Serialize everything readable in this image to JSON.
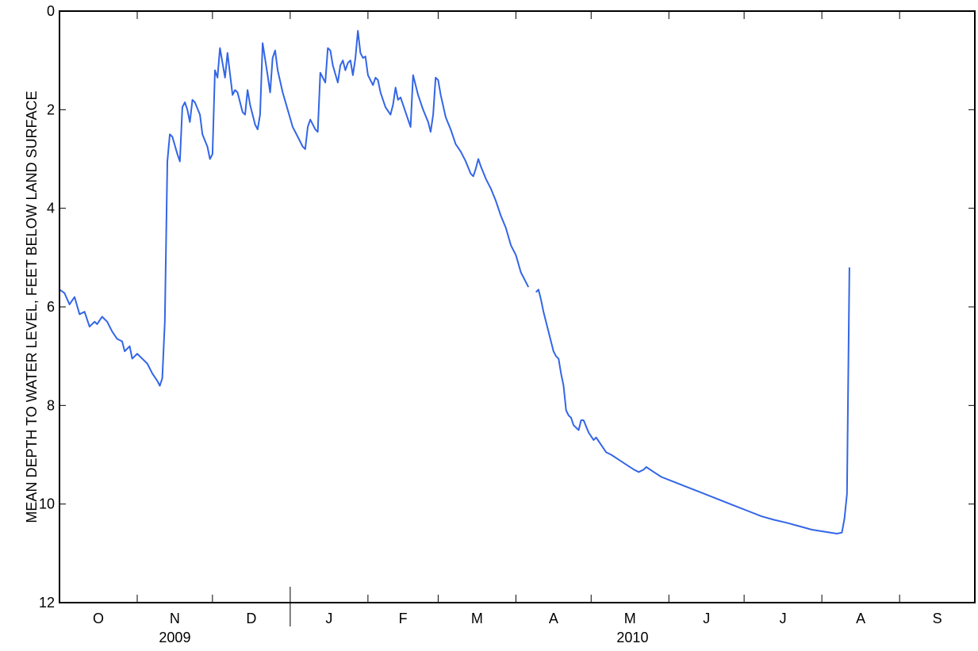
{
  "chart_data": {
    "type": "line",
    "title": "",
    "xlabel": "",
    "ylabel": "MEAN DEPTH TO WATER LEVEL, FEET BELOW LAND SURFACE",
    "y_inverted": true,
    "ylim": [
      0,
      12
    ],
    "yticks": [
      "0",
      "2",
      "4",
      "6",
      "8",
      "10",
      "12"
    ],
    "grid": false,
    "legend": "none",
    "line_color": "#3366e6",
    "x_range": [
      "2009-10-01",
      "2010-09-30"
    ],
    "month_labels": [
      "O",
      "N",
      "D",
      "J",
      "F",
      "M",
      "A",
      "M",
      "J",
      "J",
      "A",
      "S"
    ],
    "year_labels": [
      {
        "label": "2009",
        "months": "Oct–Dec"
      },
      {
        "label": "2010",
        "months": "Jan–Sep"
      }
    ],
    "series": [
      {
        "values": [
          [
            0,
            5.65
          ],
          [
            2,
            5.72
          ],
          [
            4,
            5.95
          ],
          [
            6,
            5.8
          ],
          [
            8,
            6.15
          ],
          [
            10,
            6.1
          ],
          [
            12,
            6.4
          ],
          [
            14,
            6.3
          ],
          [
            15,
            6.35
          ],
          [
            17,
            6.2
          ],
          [
            19,
            6.3
          ],
          [
            21,
            6.5
          ],
          [
            23,
            6.65
          ],
          [
            25,
            6.7
          ],
          [
            26,
            6.9
          ],
          [
            28,
            6.8
          ],
          [
            29,
            7.05
          ],
          [
            31,
            6.95
          ],
          [
            33,
            7.05
          ],
          [
            35,
            7.15
          ],
          [
            37,
            7.35
          ],
          [
            39,
            7.5
          ],
          [
            40,
            7.6
          ],
          [
            41,
            7.45
          ],
          [
            42,
            6.3
          ],
          [
            43,
            3.05
          ],
          [
            44,
            2.5
          ],
          [
            45,
            2.55
          ],
          [
            47,
            2.9
          ],
          [
            48,
            3.05
          ],
          [
            49,
            1.95
          ],
          [
            50,
            1.85
          ],
          [
            51,
            2.0
          ],
          [
            52,
            2.25
          ],
          [
            53,
            1.8
          ],
          [
            54,
            1.85
          ],
          [
            56,
            2.1
          ],
          [
            57,
            2.5
          ],
          [
            59,
            2.75
          ],
          [
            60,
            3.0
          ],
          [
            61,
            2.9
          ],
          [
            62,
            1.2
          ],
          [
            63,
            1.35
          ],
          [
            64,
            0.75
          ],
          [
            66,
            1.35
          ],
          [
            67,
            0.85
          ],
          [
            69,
            1.7
          ],
          [
            70,
            1.6
          ],
          [
            71,
            1.65
          ],
          [
            73,
            2.05
          ],
          [
            74,
            2.1
          ],
          [
            75,
            1.6
          ],
          [
            76,
            1.9
          ],
          [
            78,
            2.3
          ],
          [
            79,
            2.4
          ],
          [
            80,
            2.1
          ],
          [
            81,
            0.65
          ],
          [
            83,
            1.3
          ],
          [
            84,
            1.65
          ],
          [
            85,
            0.95
          ],
          [
            86,
            0.8
          ],
          [
            87,
            1.2
          ],
          [
            89,
            1.65
          ],
          [
            91,
            2.0
          ],
          [
            93,
            2.35
          ],
          [
            95,
            2.55
          ],
          [
            97,
            2.75
          ],
          [
            98,
            2.8
          ],
          [
            99,
            2.35
          ],
          [
            100,
            2.2
          ],
          [
            102,
            2.4
          ],
          [
            103,
            2.45
          ],
          [
            104,
            1.25
          ],
          [
            106,
            1.45
          ],
          [
            107,
            0.75
          ],
          [
            108,
            0.8
          ],
          [
            109,
            1.1
          ],
          [
            111,
            1.45
          ],
          [
            112,
            1.1
          ],
          [
            113,
            1.0
          ],
          [
            114,
            1.2
          ],
          [
            115,
            1.05
          ],
          [
            116,
            1.0
          ],
          [
            117,
            1.3
          ],
          [
            118,
            0.95
          ],
          [
            119,
            0.4
          ],
          [
            120,
            0.85
          ],
          [
            121,
            0.95
          ],
          [
            122,
            0.92
          ],
          [
            123,
            1.3
          ],
          [
            125,
            1.5
          ],
          [
            126,
            1.35
          ],
          [
            127,
            1.4
          ],
          [
            128,
            1.65
          ],
          [
            130,
            1.95
          ],
          [
            132,
            2.1
          ],
          [
            133,
            1.9
          ],
          [
            134,
            1.55
          ],
          [
            135,
            1.8
          ],
          [
            136,
            1.75
          ],
          [
            138,
            2.05
          ],
          [
            140,
            2.35
          ],
          [
            141,
            1.3
          ],
          [
            143,
            1.7
          ],
          [
            145,
            2.0
          ],
          [
            147,
            2.25
          ],
          [
            148,
            2.45
          ],
          [
            149,
            2.1
          ],
          [
            150,
            1.35
          ],
          [
            151,
            1.4
          ],
          [
            152,
            1.7
          ],
          [
            154,
            2.15
          ],
          [
            156,
            2.4
          ],
          [
            158,
            2.7
          ],
          [
            160,
            2.85
          ],
          [
            162,
            3.05
          ],
          [
            164,
            3.3
          ],
          [
            165,
            3.35
          ],
          [
            166,
            3.2
          ],
          [
            167,
            3.0
          ],
          [
            168,
            3.15
          ],
          [
            170,
            3.4
          ],
          [
            172,
            3.6
          ],
          [
            174,
            3.85
          ],
          [
            176,
            4.15
          ],
          [
            178,
            4.4
          ],
          [
            180,
            4.75
          ],
          [
            182,
            4.95
          ],
          [
            184,
            5.3
          ],
          [
            186,
            5.5
          ],
          [
            187,
            5.6
          ],
          null,
          [
            190,
            5.7
          ],
          [
            191,
            5.65
          ],
          [
            192,
            5.85
          ],
          [
            193,
            6.1
          ],
          [
            195,
            6.5
          ],
          [
            197,
            6.9
          ],
          [
            198,
            7.0
          ],
          [
            199,
            7.05
          ],
          [
            200,
            7.35
          ],
          [
            201,
            7.6
          ],
          [
            202,
            8.1
          ],
          [
            203,
            8.2
          ],
          [
            204,
            8.25
          ],
          [
            205,
            8.4
          ],
          [
            207,
            8.5
          ],
          [
            208,
            8.3
          ],
          [
            209,
            8.3
          ],
          [
            211,
            8.55
          ],
          [
            213,
            8.7
          ],
          [
            214,
            8.65
          ],
          [
            216,
            8.8
          ],
          [
            218,
            8.95
          ],
          [
            220,
            9.0
          ],
          [
            223,
            9.1
          ],
          [
            226,
            9.2
          ],
          [
            229,
            9.3
          ],
          [
            231,
            9.35
          ],
          [
            233,
            9.3
          ],
          [
            234,
            9.25
          ],
          [
            237,
            9.35
          ],
          [
            240,
            9.45
          ],
          [
            245,
            9.55
          ],
          [
            250,
            9.65
          ],
          [
            255,
            9.75
          ],
          [
            260,
            9.85
          ],
          [
            265,
            9.95
          ],
          [
            270,
            10.05
          ],
          [
            275,
            10.15
          ],
          [
            280,
            10.25
          ],
          [
            285,
            10.32
          ],
          [
            290,
            10.38
          ],
          [
            295,
            10.45
          ],
          [
            300,
            10.52
          ],
          [
            305,
            10.56
          ],
          [
            310,
            10.6
          ],
          [
            312,
            10.58
          ],
          [
            313,
            10.3
          ],
          [
            314,
            9.8
          ],
          [
            315,
            5.2
          ]
        ]
      }
    ]
  }
}
